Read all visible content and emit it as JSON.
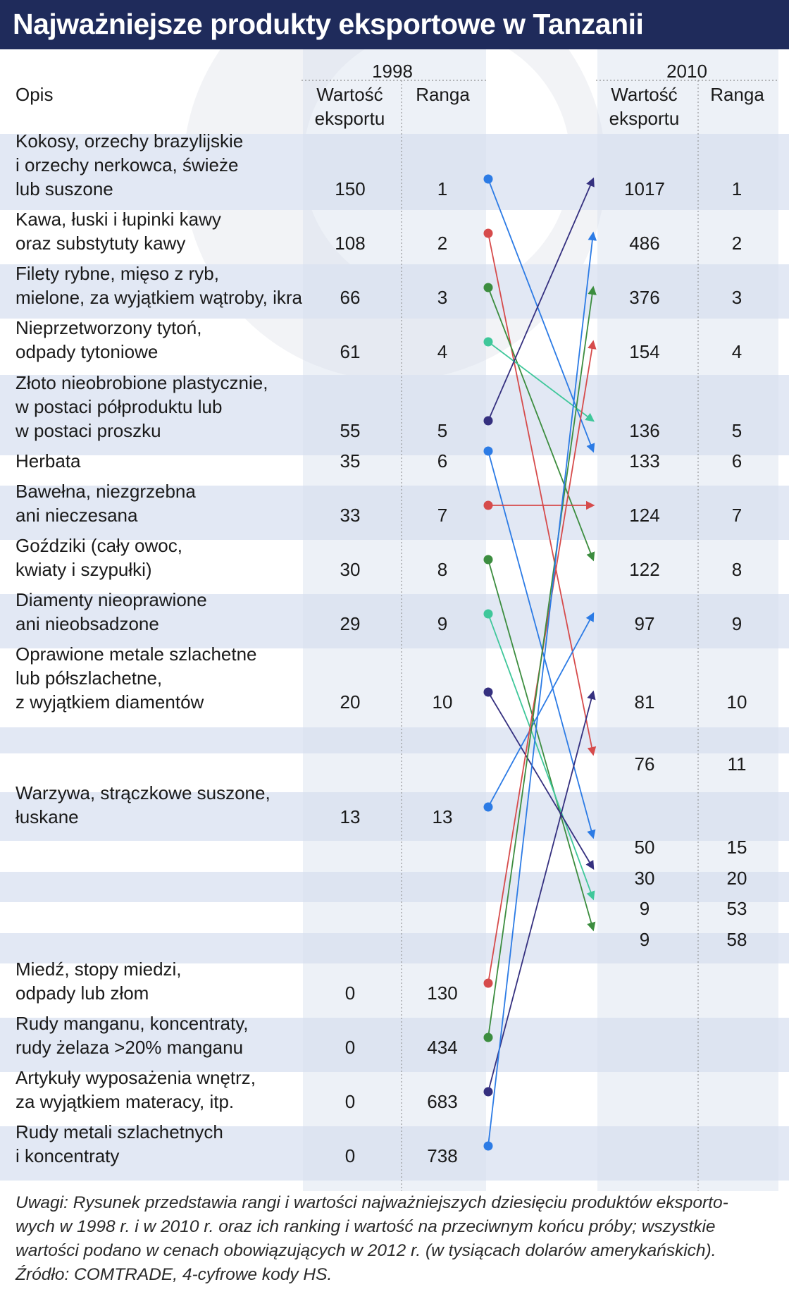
{
  "title": "Najważniejsze produkty eksportowe w Tanzanii",
  "header": {
    "opis": "Opis",
    "year_a": "1998",
    "year_b": "2010",
    "value": "Wartość\neksportu",
    "rank": "Ranga"
  },
  "colors": {
    "header_bg": "#1f2b5b",
    "band": "#e2e8f4",
    "column_band": "#d7dfee",
    "blue": "#2c7be5",
    "red": "#d64b4b",
    "green": "#3c8d3f",
    "teal": "#3fc79a",
    "navy": "#35307f"
  },
  "chart_data": {
    "type": "table",
    "columns": [
      "Opis",
      "1998 Wartość eksportu",
      "1998 Ranga",
      "2010 Wartość eksportu",
      "2010 Ranga"
    ],
    "rows": [
      {
        "desc": "Kokosy, orzechy brazylijskie\ni orzechy nerkowca, świeże\nlub suszone",
        "v98": "150",
        "r98": "1",
        "v10": "1017",
        "r10": "1"
      },
      {
        "desc": "Kawa, łuski i łupinki kawy\noraz substytuty kawy",
        "v98": "108",
        "r98": "2",
        "v10": "486",
        "r10": "2"
      },
      {
        "desc": "Filety rybne, mięso z ryb,\nmielone, za wyjątkiem wątroby, ikra",
        "v98": "66",
        "r98": "3",
        "v10": "376",
        "r10": "3"
      },
      {
        "desc": "Nieprzetworzony tytoń,\nodpady tytoniowe",
        "v98": "61",
        "r98": "4",
        "v10": "154",
        "r10": "4"
      },
      {
        "desc": "Złoto nieobrobione plastycznie,\nw postaci półproduktu lub\nw postaci proszku",
        "v98": "55",
        "r98": "5",
        "v10": "136",
        "r10": "5"
      },
      {
        "desc": "Herbata",
        "v98": "35",
        "r98": "6",
        "v10": "133",
        "r10": "6"
      },
      {
        "desc": "Bawełna, niezgrzebna\nani nieczesana",
        "v98": "33",
        "r98": "7",
        "v10": "124",
        "r10": "7"
      },
      {
        "desc": "Goździki (cały owoc,\nkwiaty i szypułki)",
        "v98": "30",
        "r98": "8",
        "v10": "122",
        "r10": "8"
      },
      {
        "desc": "Diamenty nieoprawione\nani nieobsadzone",
        "v98": "29",
        "r98": "9",
        "v10": "97",
        "r10": "9"
      },
      {
        "desc": "Oprawione metale szlachetne\nlub półszlachetne,\nz wyjątkiem diamentów",
        "v98": "20",
        "r98": "10",
        "v10": "81",
        "r10": "10"
      },
      {
        "desc": "",
        "v98": "",
        "r98": "",
        "v10": "",
        "r10": ""
      },
      {
        "desc": "",
        "v98": "",
        "r98": "",
        "v10": "76",
        "r10": "11"
      },
      {
        "desc": "Warzywa, strączkowe suszone,\nłuskane",
        "v98": "13",
        "r98": "13",
        "v10": "",
        "r10": ""
      },
      {
        "desc": "",
        "v98": "",
        "r98": "",
        "v10": "50",
        "r10": "15"
      },
      {
        "desc": "",
        "v98": "",
        "r98": "",
        "v10": "30",
        "r10": "20"
      },
      {
        "desc": "",
        "v98": "",
        "r98": "",
        "v10": "9",
        "r10": "53"
      },
      {
        "desc": "",
        "v98": "",
        "r98": "",
        "v10": "9",
        "r10": "58"
      },
      {
        "desc": "Miedź, stopy miedzi,\nodpady lub złom",
        "v98": "0",
        "r98": "130",
        "v10": "",
        "r10": ""
      },
      {
        "desc": "Rudy manganu, koncentraty,\nrudy żelaza >20% manganu",
        "v98": "0",
        "r98": "434",
        "v10": "",
        "r10": ""
      },
      {
        "desc": "Artykuły wyposażenia wnętrz,\nza wyjątkiem materacy, itp.",
        "v98": "0",
        "r98": "683",
        "v10": "",
        "r10": ""
      },
      {
        "desc": "Rudy metali szlachetnych\ni koncentraty",
        "v98": "0",
        "r98": "738",
        "v10": "",
        "r10": ""
      }
    ],
    "connections": [
      {
        "from_rank_1998": 1,
        "to_rank_2010": 6,
        "color": "blue"
      },
      {
        "from_rank_1998": 2,
        "to_rank_2010": 11,
        "color": "red"
      },
      {
        "from_rank_1998": 3,
        "to_rank_2010": 8,
        "color": "green"
      },
      {
        "from_rank_1998": 4,
        "to_rank_2010": 5,
        "color": "teal"
      },
      {
        "from_rank_1998": 5,
        "to_rank_2010": 1,
        "color": "navy"
      },
      {
        "from_rank_1998": 6,
        "to_rank_2010": 15,
        "color": "blue"
      },
      {
        "from_rank_1998": 7,
        "to_rank_2010": 7,
        "color": "red"
      },
      {
        "from_rank_1998": 8,
        "to_rank_2010": 58,
        "color": "green"
      },
      {
        "from_rank_1998": 9,
        "to_rank_2010": 53,
        "color": "teal"
      },
      {
        "from_rank_1998": 10,
        "to_rank_2010": 20,
        "color": "navy"
      },
      {
        "from_rank_1998": 13,
        "to_rank_2010": 9,
        "color": "blue"
      },
      {
        "from_rank_1998": 130,
        "to_rank_2010": 4,
        "color": "red"
      },
      {
        "from_rank_1998": 434,
        "to_rank_2010": 3,
        "color": "green"
      },
      {
        "from_rank_1998": 683,
        "to_rank_2010": 10,
        "color": "navy"
      },
      {
        "from_rank_1998": 738,
        "to_rank_2010": 2,
        "color": "blue"
      }
    ]
  },
  "notes": [
    "Uwagi: Rysunek przedstawia rangi i wartości najważniejszych dziesięciu produktów eksporto-",
    "wych w 1998 r. i w 2010 r. oraz ich ranking i wartość na przeciwnym końcu próby; wszystkie",
    "wartości podano w cenach obowiązujących w 2012 r. (w tysiącach dolarów amerykańskich).",
    "Źródło: COMTRADE, 4-cyfrowe kody HS."
  ]
}
